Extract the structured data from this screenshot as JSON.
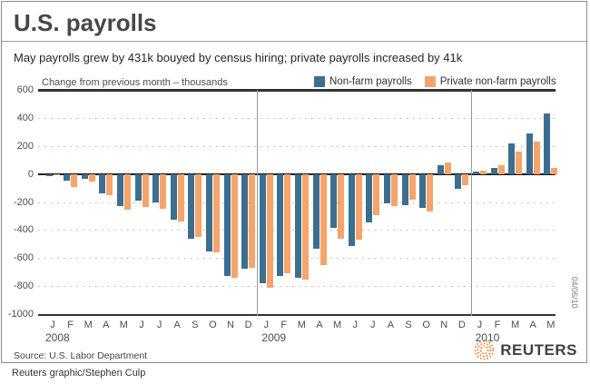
{
  "header": {
    "title": "U.S. payrolls",
    "subtitle": "May payrolls grew by 431k bouyed by census hiring; private payrolls increased by 41k"
  },
  "chart_data": {
    "type": "bar",
    "title": "U.S. payrolls",
    "axis_note": "Change from previous month – thousands",
    "categories": [
      "J",
      "F",
      "M",
      "A",
      "M",
      "J",
      "J",
      "A",
      "S",
      "O",
      "N",
      "D",
      "J",
      "F",
      "M",
      "A",
      "M",
      "J",
      "J",
      "A",
      "S",
      "O",
      "N",
      "D",
      "J",
      "F",
      "M",
      "A",
      "M"
    ],
    "year_labels": [
      "2008",
      "2009",
      "2010"
    ],
    "year_start_indices": [
      0,
      12,
      24
    ],
    "series": [
      {
        "name": "Non-farm payrolls",
        "color": "#3c6e90",
        "values": [
          -15,
          -50,
          -33,
          -140,
          -228,
          -190,
          -200,
          -325,
          -460,
          -553,
          -728,
          -678,
          -780,
          -726,
          -744,
          -534,
          -383,
          -514,
          -346,
          -211,
          -222,
          -240,
          64,
          -109,
          15,
          45,
          215,
          290,
          431
        ]
      },
      {
        "name": "Private non-farm payrolls",
        "color": "#f6a46b",
        "values": [
          -12,
          -90,
          -57,
          -150,
          -253,
          -233,
          -248,
          -342,
          -452,
          -560,
          -739,
          -668,
          -810,
          -710,
          -754,
          -652,
          -460,
          -466,
          -292,
          -227,
          -185,
          -270,
          80,
          -80,
          22,
          62,
          162,
          230,
          41
        ]
      }
    ],
    "ylim": [
      -1000,
      600
    ],
    "yticks": [
      600,
      400,
      200,
      0,
      -200,
      -400,
      -600,
      -800,
      -1000
    ],
    "grid": "dotted horizontal gridlines, solid zero line, vertical year separators",
    "legend_position": "top-right"
  },
  "footer": {
    "source": "Source: U.S. Labor Department",
    "credit": "Reuters graphic/Stephen Culp",
    "brand": "REUTERS",
    "date_stamp": "04/06/10"
  }
}
